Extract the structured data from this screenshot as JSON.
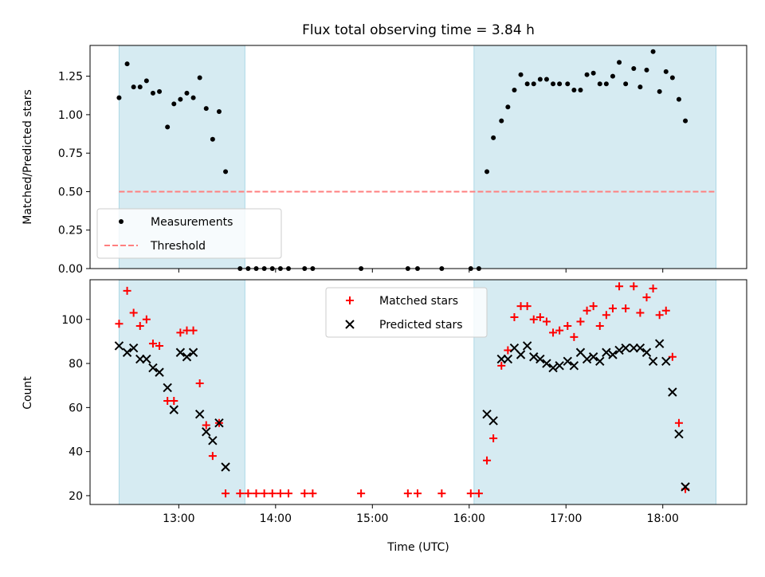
{
  "figure": {
    "title": "Flux total observing time = 3.84 h",
    "xlabel": "Time (UTC)"
  },
  "chart_data": [
    {
      "type": "scatter",
      "panel": "top",
      "ylabel": "Matched/Predicted stars",
      "xlim": [
        "12:05",
        "18:52"
      ],
      "ylim": [
        0,
        1.45
      ],
      "yticks": [
        "0.00",
        "0.25",
        "0.50",
        "0.75",
        "1.00",
        "1.25"
      ],
      "shaded_intervals": [
        [
          "12:23",
          "13:41"
        ],
        [
          "16:03",
          "18:33"
        ]
      ],
      "legend_position": "lower-left",
      "series": [
        {
          "name": "Measurements",
          "marker": "dot",
          "color": "#000000",
          "points": [
            [
              "12:23",
              1.11
            ],
            [
              "12:28",
              1.33
            ],
            [
              "12:32",
              1.18
            ],
            [
              "12:36",
              1.18
            ],
            [
              "12:40",
              1.22
            ],
            [
              "12:44",
              1.14
            ],
            [
              "12:48",
              1.15
            ],
            [
              "12:53",
              0.92
            ],
            [
              "12:57",
              1.07
            ],
            [
              "13:01",
              1.1
            ],
            [
              "13:05",
              1.14
            ],
            [
              "13:09",
              1.11
            ],
            [
              "13:13",
              1.24
            ],
            [
              "13:17",
              1.04
            ],
            [
              "13:21",
              0.84
            ],
            [
              "13:25",
              1.02
            ],
            [
              "13:29",
              0.63
            ],
            [
              "13:38",
              0
            ],
            [
              "13:43",
              0
            ],
            [
              "13:48",
              0
            ],
            [
              "13:53",
              0
            ],
            [
              "13:58",
              0
            ],
            [
              "14:03",
              0
            ],
            [
              "14:08",
              0
            ],
            [
              "14:18",
              0
            ],
            [
              "14:23",
              0
            ],
            [
              "14:53",
              0
            ],
            [
              "15:22",
              0
            ],
            [
              "15:28",
              0
            ],
            [
              "15:43",
              0
            ],
            [
              "16:01",
              0
            ],
            [
              "16:06",
              0
            ],
            [
              "16:11",
              0.63
            ],
            [
              "16:15",
              0.85
            ],
            [
              "16:20",
              0.96
            ],
            [
              "16:24",
              1.05
            ],
            [
              "16:28",
              1.16
            ],
            [
              "16:32",
              1.26
            ],
            [
              "16:36",
              1.2
            ],
            [
              "16:40",
              1.2
            ],
            [
              "16:44",
              1.23
            ],
            [
              "16:48",
              1.23
            ],
            [
              "16:52",
              1.2
            ],
            [
              "16:56",
              1.2
            ],
            [
              "17:01",
              1.2
            ],
            [
              "17:05",
              1.16
            ],
            [
              "17:09",
              1.16
            ],
            [
              "17:13",
              1.26
            ],
            [
              "17:17",
              1.27
            ],
            [
              "17:21",
              1.2
            ],
            [
              "17:25",
              1.2
            ],
            [
              "17:29",
              1.25
            ],
            [
              "17:33",
              1.34
            ],
            [
              "17:37",
              1.2
            ],
            [
              "17:42",
              1.3
            ],
            [
              "17:46",
              1.18
            ],
            [
              "17:50",
              1.29
            ],
            [
              "17:54",
              1.41
            ],
            [
              "17:58",
              1.15
            ],
            [
              "18:02",
              1.28
            ],
            [
              "18:06",
              1.24
            ],
            [
              "18:10",
              1.1
            ],
            [
              "18:14",
              0.96
            ]
          ]
        },
        {
          "name": "Threshold",
          "marker": "dashed-line",
          "color": "#ff7f7f",
          "points": [
            [
              "12:23",
              0.5
            ],
            [
              "18:33",
              0.5
            ]
          ]
        }
      ]
    },
    {
      "type": "scatter",
      "panel": "bottom",
      "ylabel": "Count",
      "xlim": [
        "12:05",
        "18:52"
      ],
      "ylim": [
        16,
        118
      ],
      "yticks": [
        "20",
        "40",
        "60",
        "80",
        "100"
      ],
      "xticks": [
        "13:00",
        "14:00",
        "15:00",
        "16:00",
        "17:00",
        "18:00"
      ],
      "shaded_intervals": [
        [
          "12:23",
          "13:41"
        ],
        [
          "16:03",
          "18:33"
        ]
      ],
      "legend_position": "upper-center",
      "series": [
        {
          "name": "Matched stars",
          "marker": "plus",
          "color": "#ff0000",
          "points": [
            [
              "12:23",
              98
            ],
            [
              "12:28",
              113
            ],
            [
              "12:32",
              103
            ],
            [
              "12:36",
              97
            ],
            [
              "12:40",
              100
            ],
            [
              "12:44",
              89
            ],
            [
              "12:48",
              88
            ],
            [
              "12:53",
              63
            ],
            [
              "12:57",
              63
            ],
            [
              "13:01",
              94
            ],
            [
              "13:05",
              95
            ],
            [
              "13:09",
              95
            ],
            [
              "13:13",
              71
            ],
            [
              "13:17",
              52
            ],
            [
              "13:21",
              38
            ],
            [
              "13:25",
              53
            ],
            [
              "13:29",
              21
            ],
            [
              "13:38",
              21
            ],
            [
              "13:43",
              21
            ],
            [
              "13:48",
              21
            ],
            [
              "13:53",
              21
            ],
            [
              "13:58",
              21
            ],
            [
              "14:03",
              21
            ],
            [
              "14:08",
              21
            ],
            [
              "14:18",
              21
            ],
            [
              "14:23",
              21
            ],
            [
              "14:53",
              21
            ],
            [
              "15:22",
              21
            ],
            [
              "15:28",
              21
            ],
            [
              "15:43",
              21
            ],
            [
              "16:01",
              21
            ],
            [
              "16:06",
              21
            ],
            [
              "16:11",
              36
            ],
            [
              "16:15",
              46
            ],
            [
              "16:20",
              79
            ],
            [
              "16:24",
              86
            ],
            [
              "16:28",
              101
            ],
            [
              "16:32",
              106
            ],
            [
              "16:36",
              106
            ],
            [
              "16:40",
              100
            ],
            [
              "16:44",
              101
            ],
            [
              "16:48",
              99
            ],
            [
              "16:52",
              94
            ],
            [
              "16:56",
              95
            ],
            [
              "17:01",
              97
            ],
            [
              "17:05",
              92
            ],
            [
              "17:09",
              99
            ],
            [
              "17:13",
              104
            ],
            [
              "17:17",
              106
            ],
            [
              "17:21",
              97
            ],
            [
              "17:25",
              102
            ],
            [
              "17:29",
              105
            ],
            [
              "17:33",
              115
            ],
            [
              "17:37",
              105
            ],
            [
              "17:42",
              115
            ],
            [
              "17:46",
              103
            ],
            [
              "17:50",
              110
            ],
            [
              "17:54",
              114
            ],
            [
              "17:58",
              102
            ],
            [
              "18:02",
              104
            ],
            [
              "18:06",
              83
            ],
            [
              "18:10",
              53
            ],
            [
              "18:14",
              23
            ]
          ]
        },
        {
          "name": "Predicted stars",
          "marker": "x",
          "color": "#000000",
          "points": [
            [
              "12:23",
              88
            ],
            [
              "12:28",
              85
            ],
            [
              "12:32",
              87
            ],
            [
              "12:36",
              82
            ],
            [
              "12:40",
              82
            ],
            [
              "12:44",
              78
            ],
            [
              "12:48",
              76
            ],
            [
              "12:53",
              69
            ],
            [
              "12:57",
              59
            ],
            [
              "13:01",
              85
            ],
            [
              "13:05",
              83
            ],
            [
              "13:09",
              85
            ],
            [
              "13:13",
              57
            ],
            [
              "13:17",
              49
            ],
            [
              "13:21",
              45
            ],
            [
              "13:25",
              53
            ],
            [
              "13:29",
              33
            ],
            [
              "16:11",
              57
            ],
            [
              "16:15",
              54
            ],
            [
              "16:20",
              82
            ],
            [
              "16:24",
              82
            ],
            [
              "16:28",
              87
            ],
            [
              "16:32",
              84
            ],
            [
              "16:36",
              88
            ],
            [
              "16:40",
              83
            ],
            [
              "16:44",
              82
            ],
            [
              "16:48",
              80
            ],
            [
              "16:52",
              78
            ],
            [
              "16:56",
              79
            ],
            [
              "17:01",
              81
            ],
            [
              "17:05",
              79
            ],
            [
              "17:09",
              85
            ],
            [
              "17:13",
              82
            ],
            [
              "17:17",
              83
            ],
            [
              "17:21",
              81
            ],
            [
              "17:25",
              85
            ],
            [
              "17:29",
              84
            ],
            [
              "17:33",
              86
            ],
            [
              "17:37",
              87
            ],
            [
              "17:42",
              87
            ],
            [
              "17:46",
              87
            ],
            [
              "17:50",
              85
            ],
            [
              "17:54",
              81
            ],
            [
              "17:58",
              89
            ],
            [
              "18:02",
              81
            ],
            [
              "18:06",
              67
            ],
            [
              "18:10",
              48
            ],
            [
              "18:14",
              24
            ]
          ]
        }
      ]
    }
  ],
  "colors": {
    "shade": "#add8e6",
    "axes": "#000000"
  }
}
